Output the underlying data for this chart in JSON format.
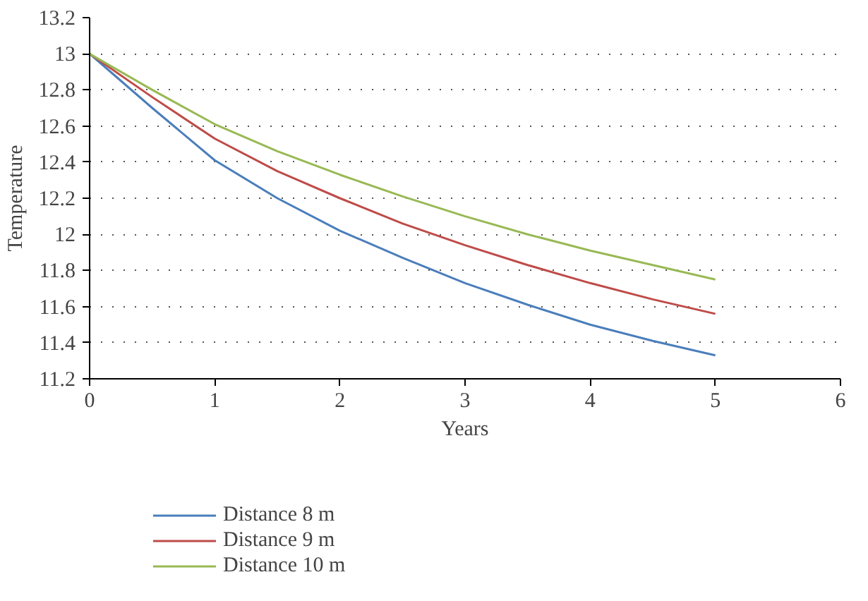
{
  "chart_data": {
    "type": "line",
    "xlabel": "Years",
    "ylabel": "Temperature",
    "x": [
      0,
      0.5,
      1,
      1.5,
      2,
      2.5,
      3,
      3.5,
      4,
      4.5,
      5
    ],
    "series": [
      {
        "name": "Distance 8 m",
        "color": "#4a7ebb",
        "values": [
          13,
          12.7,
          12.41,
          12.2,
          12.02,
          11.87,
          11.73,
          11.61,
          11.5,
          11.41,
          11.33
        ]
      },
      {
        "name": "Distance 9 m",
        "color": "#be4b48",
        "values": [
          13,
          12.76,
          12.53,
          12.35,
          12.2,
          12.06,
          11.94,
          11.83,
          11.73,
          11.64,
          11.56
        ]
      },
      {
        "name": "Distance 10 m",
        "color": "#98b954",
        "values": [
          13,
          12.8,
          12.61,
          12.46,
          12.33,
          12.21,
          12.1,
          12.0,
          11.91,
          11.83,
          11.75
        ]
      }
    ],
    "xlim": [
      0,
      6
    ],
    "xticks": [
      0,
      1,
      2,
      3,
      4,
      5,
      6
    ],
    "ylim": [
      11.2,
      13.2
    ],
    "yticks": [
      11.2,
      11.4,
      11.6,
      11.8,
      12,
      12.2,
      12.4,
      12.6,
      12.8,
      13,
      13.2
    ],
    "grid": "y",
    "legend": "bottom",
    "marker": "none",
    "line_style": "solid"
  }
}
